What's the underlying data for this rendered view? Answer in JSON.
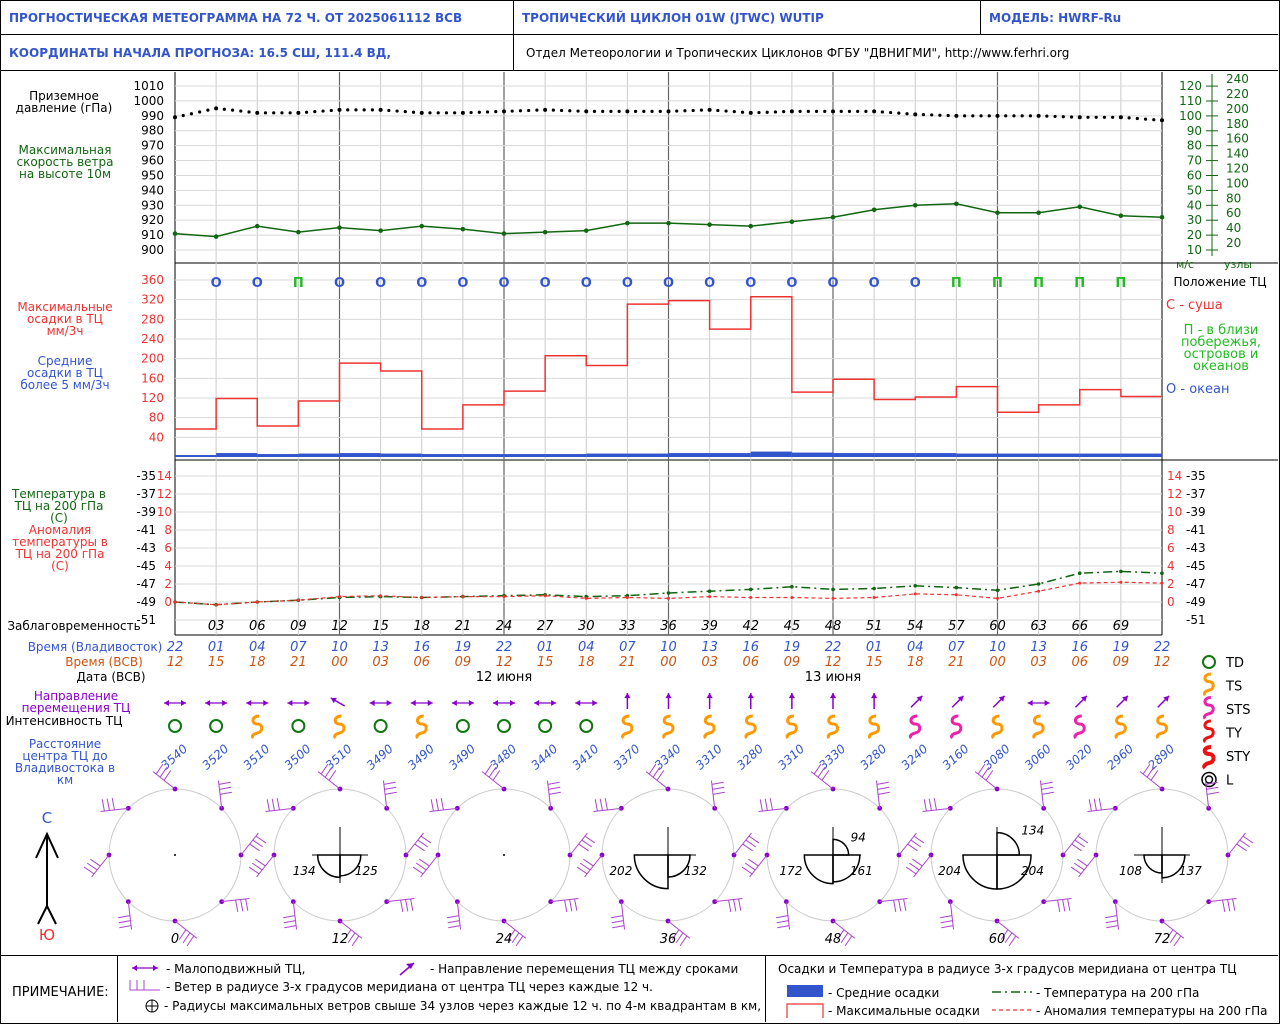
{
  "header": {
    "title": "ПРОГНОСТИЧЕСКАЯ МЕТЕОГРАММА НА 72 Ч. ОТ 2025061112 ВСВ",
    "cyclone": "ТРОПИЧЕСКИЙ ЦИКЛОН  01W  (JTWC)  WUTIP",
    "model": "МОДЕЛЬ:   HWRF-Ru",
    "coords": "КООРДИНАТЫ НАЧАЛА ПРОГНОЗА:  16.5  СШ,   111.4  ВД,",
    "org": "Отдел Метеорологии и Тропических Циклонов ФГБУ \"ДВНИГМИ\",  http://www.ferhri.org"
  },
  "labels": {
    "pressure": "Приземное давление (гПа)",
    "wind": "Максимальная скорость ветра на высоте 10м",
    "max_precip": "Максимальные осадки в ТЦ мм/3ч",
    "mean_precip": "Средние осадки в ТЦ более 5 мм/3ч",
    "temp200": "Температура в ТЦ на 200 гПа (С)",
    "anom200": "Аномалия температуры в ТЦ на 200 гПа (С)",
    "lead": "Заблаговременность",
    "time_vl": "Время (Владивосток)",
    "time_utc": "Время (ВСВ)",
    "date_utc": "Дата (ВСВ)",
    "direction": "Направление перемещения ТЦ",
    "intensity": "Интенсивность ТЦ",
    "distance": "Расстояние центра ТЦ до Владивостока в км",
    "ms": "м/с",
    "knots": "узлы",
    "north": "С",
    "south": "Ю"
  },
  "position_legend": {
    "title": "Положение ТЦ",
    "land": "С - суша",
    "coast": "П - в близи побережья, островов и океанов",
    "ocean": "О - океан"
  },
  "intensity_legend": [
    "TD",
    "TS",
    "STS",
    "TY",
    "STY",
    "L"
  ],
  "footer": {
    "title": "ПРИМЕЧАНИЕ:",
    "stationary": "- Малоподвижный ТЦ,",
    "direction": "- Направление перемещения ТЦ между сроками",
    "wind": "- Ветер в радиусе 3-х градусов меридиана от центра ТЦ через каждые 12 ч.",
    "radii": "- Радиусы максимальных ветров свыше 34 узлов через каждые 12 ч. по 4-м квадрантам в км,",
    "precip_title": "Осадки и Температура в радиусе 3-х градусов меридиана от центра ТЦ",
    "mean": "- Средние осадки",
    "max": "- Максимальные осадки",
    "temp": "- Температура на 200 гПа",
    "anom": "- Аномалия температуры на 200 гПа"
  },
  "colors": {
    "green": "#116611",
    "red": "#ee3333",
    "blue": "#3355cc",
    "orange": "#cc5511",
    "purple": "#8800cc",
    "bar": "#3355cc",
    "ts": "#ff9900",
    "sts": "#ee22aa",
    "td": "#117711"
  },
  "chart_data": [
    {
      "type": "line",
      "name": "pressure",
      "x": [
        0,
        3,
        6,
        9,
        12,
        15,
        18,
        21,
        24,
        27,
        30,
        33,
        36,
        39,
        42,
        45,
        48,
        51,
        54,
        57,
        60,
        63,
        66,
        69,
        72
      ],
      "ylabel": "Приземное давление (гПа)",
      "ylim": [
        900,
        1010
      ],
      "yticks": [
        1010,
        1000,
        990,
        980,
        970,
        960,
        950,
        940,
        930,
        920,
        910,
        900
      ],
      "values": [
        989,
        995,
        992,
        992,
        994,
        994,
        992,
        992,
        993,
        994,
        993,
        993,
        993,
        994,
        992,
        993,
        993,
        993,
        991,
        990,
        990,
        990,
        989,
        989,
        987
      ]
    },
    {
      "type": "line",
      "name": "max_wind",
      "right_ticks_ms": [
        120,
        110,
        100,
        90,
        80,
        70,
        60,
        50,
        40,
        30,
        20,
        10
      ],
      "right_ticks_kt": [
        240,
        220,
        200,
        180,
        160,
        140,
        120,
        100,
        80,
        60,
        40,
        20
      ],
      "values_ms": [
        21,
        19,
        26,
        22,
        25,
        23,
        26,
        24,
        21,
        22,
        23,
        28,
        28,
        27,
        26,
        29,
        32,
        37,
        40,
        41,
        35,
        35,
        39,
        33,
        32
      ]
    },
    {
      "type": "bar",
      "name": "precip",
      "ylim": [
        0,
        380
      ],
      "yticks": [
        360,
        320,
        280,
        240,
        200,
        160,
        120,
        80,
        40
      ],
      "max_precip": [
        57,
        119,
        63,
        114,
        191,
        175,
        57,
        106,
        134,
        206,
        186,
        311,
        318,
        260,
        326,
        132,
        158,
        117,
        122,
        143,
        91,
        106,
        137,
        123
      ],
      "mean_precip": [
        4,
        8,
        6,
        7,
        8,
        7,
        6,
        6,
        6,
        6,
        7,
        7,
        8,
        8,
        11,
        9,
        8,
        8,
        8,
        7,
        7,
        7,
        7,
        7
      ],
      "position": [
        "О",
        "О",
        "П",
        "О",
        "О",
        "О",
        "О",
        "О",
        "О",
        "О",
        "О",
        "О",
        "О",
        "О",
        "О",
        "О",
        "О",
        "О",
        "П",
        "П",
        "П",
        "П",
        "П"
      ]
    },
    {
      "type": "line",
      "name": "temp200",
      "left_ticks_temp": [
        -35,
        -37,
        -39,
        -41,
        -43,
        -45,
        -47,
        -49,
        -51
      ],
      "left_ticks_anom": [
        14,
        12,
        10,
        8,
        6,
        4,
        2,
        0
      ],
      "temperature": [
        -49.0,
        -49.3,
        -49.0,
        -48.8,
        -48.5,
        -48.4,
        -48.5,
        -48.4,
        -48.3,
        -48.2,
        -48.4,
        -48.3,
        -48.0,
        -47.8,
        -47.6,
        -47.3,
        -47.6,
        -47.5,
        -47.2,
        -47.4,
        -47.7,
        -47.0,
        -45.8,
        -45.6,
        -45.8
      ],
      "anomaly": [
        0.0,
        -0.3,
        0.0,
        0.2,
        0.6,
        0.7,
        0.5,
        0.6,
        0.6,
        0.7,
        0.4,
        0.5,
        0.4,
        0.6,
        0.5,
        0.5,
        0.4,
        0.5,
        0.9,
        0.8,
        0.4,
        1.2,
        2.1,
        2.2,
        2.1
      ]
    }
  ],
  "timeline": {
    "lead": [
      "03",
      "06",
      "09",
      "12",
      "15",
      "18",
      "21",
      "24",
      "27",
      "30",
      "33",
      "36",
      "39",
      "42",
      "45",
      "48",
      "51",
      "54",
      "57",
      "60",
      "63",
      "66",
      "69"
    ],
    "vl": [
      "22",
      "01",
      "04",
      "07",
      "10",
      "13",
      "16",
      "19",
      "22",
      "01",
      "04",
      "07",
      "10",
      "13",
      "16",
      "19",
      "22",
      "01",
      "04",
      "07",
      "10",
      "13",
      "16",
      "19",
      "22"
    ],
    "utc": [
      "12",
      "15",
      "18",
      "21",
      "00",
      "03",
      "06",
      "09",
      "12",
      "15",
      "18",
      "21",
      "00",
      "03",
      "06",
      "09",
      "12",
      "15",
      "18",
      "21",
      "00",
      "03",
      "06",
      "09",
      "12"
    ],
    "dates": [
      "12 июня",
      "13 июня"
    ],
    "intensity": [
      "TD",
      "TD",
      "TS",
      "TD",
      "TS",
      "TD",
      "TS",
      "TD",
      "TD",
      "TD",
      "TD",
      "TS",
      "TS",
      "TS",
      "TS",
      "TS",
      "TS",
      "TS",
      "STS",
      "STS",
      "TS",
      "TS",
      "STS",
      "TS",
      "TS"
    ],
    "direction": [
      "stat",
      "stat",
      "stat",
      "stat",
      "NW",
      "stat",
      "stat",
      "stat",
      "stat",
      "stat",
      "stat",
      "N",
      "N",
      "N",
      "N",
      "N",
      "N",
      "N",
      "NE",
      "NE",
      "NE",
      "stat",
      "NE",
      "NE",
      "NE"
    ],
    "distance": [
      "3540",
      "3520",
      "3510",
      "3500",
      "3510",
      "3490",
      "3490",
      "3490",
      "3480",
      "3440",
      "3410",
      "3370",
      "3340",
      "3310",
      "3280",
      "3310",
      "3330",
      "3280",
      "3240",
      "3160",
      "3080",
      "3060",
      "3020",
      "2960",
      "2890"
    ]
  },
  "wind_radii": [
    {
      "hour": "0",
      "values": []
    },
    {
      "hour": "12",
      "values": [
        "134",
        "125"
      ]
    },
    {
      "hour": "24",
      "values": []
    },
    {
      "hour": "36",
      "values": [
        "202",
        "132"
      ]
    },
    {
      "hour": "48",
      "values": [
        "94",
        "172",
        "161"
      ]
    },
    {
      "hour": "60",
      "values": [
        "134",
        "204",
        "204"
      ]
    },
    {
      "hour": "72",
      "values": [
        "108",
        "137"
      ]
    }
  ]
}
